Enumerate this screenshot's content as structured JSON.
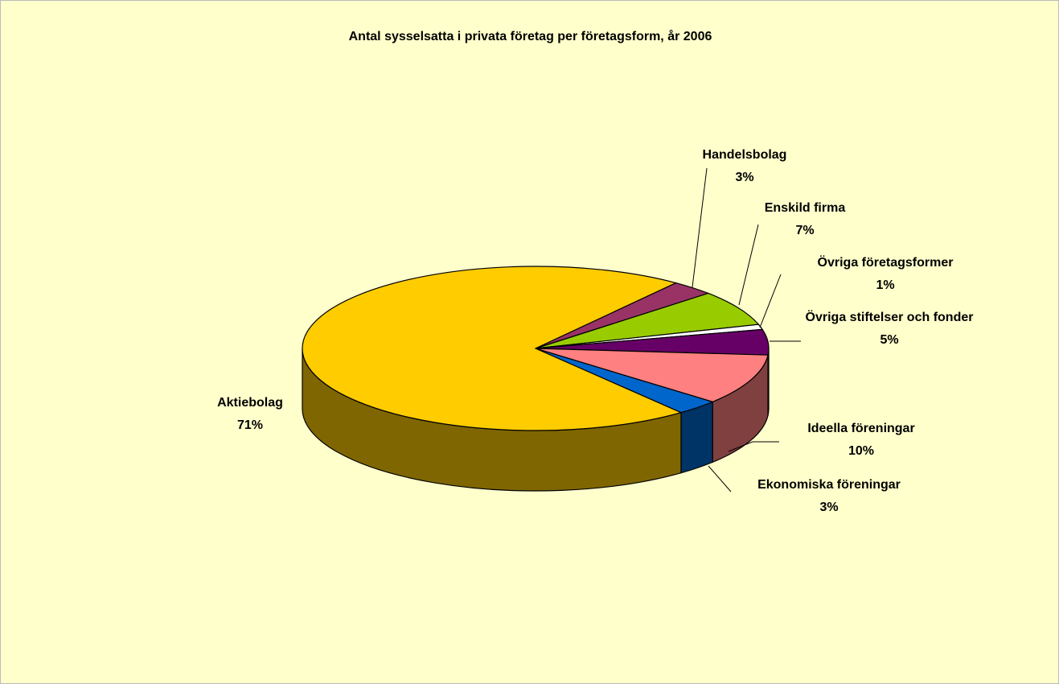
{
  "chart_data": {
    "type": "pie",
    "title": "Antal sysselsatta i privata företag per företagsform, år 2006",
    "categories": [
      "Handelsbolag",
      "Enskild firma",
      "Övriga företagsformer",
      "Övriga stiftelser och fonder",
      "Ideella föreningar",
      "Ekonomiska föreningar",
      "Aktiebolag"
    ],
    "values": [
      3,
      7,
      1,
      5,
      10,
      3,
      71
    ],
    "value_labels": [
      "3%",
      "7%",
      "1%",
      "5%",
      "10%",
      "3%",
      "71%"
    ],
    "colors": [
      "#993366",
      "#99CC00",
      "#FFFFFF",
      "#660066",
      "#FF8080",
      "#0066CC",
      "#FFCC00"
    ]
  }
}
